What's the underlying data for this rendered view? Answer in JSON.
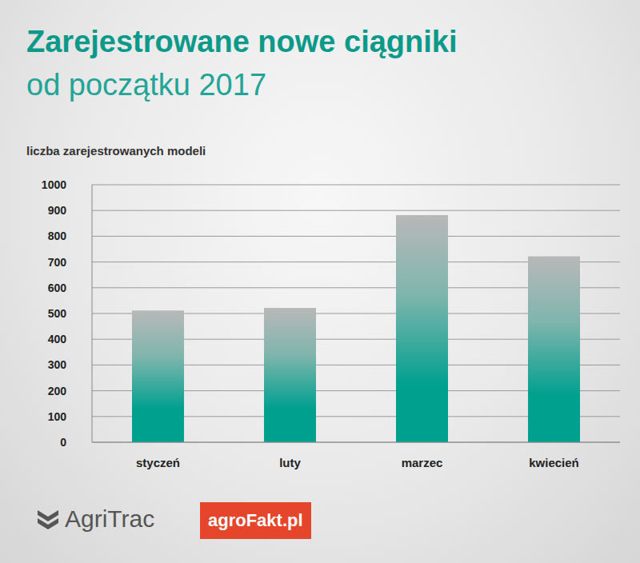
{
  "chart_data": {
    "type": "bar",
    "title": "Zarejestrowane nowe ciągniki",
    "subtitle": "od początku 2017",
    "y_label": "liczba zarejestrowanych modeli",
    "categories": [
      "styczeń",
      "luty",
      "marzec",
      "kwiecień"
    ],
    "values": [
      512,
      522,
      882,
      722
    ],
    "color": "#00a08f",
    "ylim": [
      0,
      1000
    ],
    "yticks": [
      0,
      100,
      200,
      300,
      400,
      500,
      600,
      700,
      800,
      900,
      1000
    ],
    "grid": true,
    "logos": [
      "AgriTrac",
      "agroFakt.pl"
    ]
  }
}
